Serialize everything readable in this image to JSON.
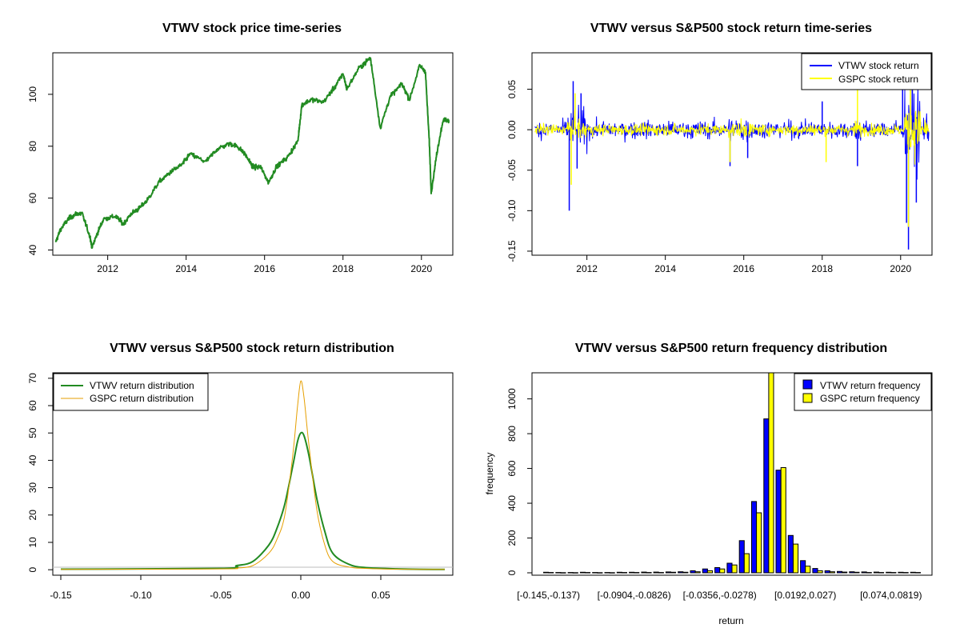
{
  "colors": {
    "price": "#228B22",
    "vtwv_return": "#0000FF",
    "gspc_return": "#FFFF00",
    "vtwv_density": "#228B22",
    "gspc_density": "#E69F00",
    "hist_vtwv": "#0000FF",
    "hist_gspc": "#FFFF00"
  },
  "chart_data": [
    {
      "type": "line",
      "title": "VTWV stock price time-series",
      "xlabel": "",
      "ylabel": "",
      "xticks": [
        "2012",
        "2014",
        "2016",
        "2018",
        "2020"
      ],
      "yticks": [
        "40",
        "60",
        "80",
        "100"
      ],
      "xlim": [
        2010.6,
        2020.8
      ],
      "ylim": [
        38,
        116
      ],
      "grid": false,
      "series": [
        {
          "x": [
            2010.67,
            2010.8,
            2011.0,
            2011.2,
            2011.35,
            2011.55,
            2011.6,
            2011.75,
            2011.9,
            2012.2,
            2012.4,
            2012.6,
            2012.8,
            2013.0,
            2013.3,
            2013.6,
            2013.9,
            2014.1,
            2014.5,
            2014.8,
            2015.1,
            2015.3,
            2015.5,
            2015.7,
            2015.9,
            2016.1,
            2016.3,
            2016.6,
            2016.85,
            2016.95,
            2017.2,
            2017.5,
            2017.8,
            2018.0,
            2018.1,
            2018.4,
            2018.7,
            2018.95,
            2019.2,
            2019.5,
            2019.7,
            2019.95,
            2020.1,
            2020.2,
            2020.25,
            2020.4,
            2020.55,
            2020.7
          ],
          "y": [
            43,
            48,
            52,
            54,
            54,
            45,
            41,
            47,
            52,
            53,
            50,
            54,
            56,
            59,
            66,
            70,
            73,
            77,
            74,
            79,
            81,
            80,
            77,
            72,
            72,
            66,
            72,
            76,
            82,
            96,
            98,
            97,
            103,
            108,
            102,
            110,
            114,
            87,
            99,
            104,
            98,
            111,
            109,
            82,
            62,
            78,
            90,
            90
          ]
        }
      ]
    },
    {
      "type": "line",
      "title": "VTWV versus S&P500 stock return time-series",
      "xlabel": "",
      "ylabel": "",
      "xticks": [
        "2012",
        "2014",
        "2016",
        "2018",
        "2020"
      ],
      "yticks": [
        "-0.15",
        "-0.10",
        "-0.05",
        "0.00",
        "0.05"
      ],
      "xlim": [
        2010.6,
        2020.8
      ],
      "ylim": [
        -0.155,
        0.095
      ],
      "grid": false,
      "legend": "top-right",
      "series": [
        {
          "name": "VTWV stock return",
          "x": [
            2011.55,
            2011.65,
            2011.75,
            2011.85,
            2015.65,
            2016.1,
            2018.0,
            2018.9,
            2020.05,
            2020.15,
            2020.2,
            2020.3,
            2020.4
          ],
          "y": [
            -0.1,
            0.06,
            -0.048,
            0.045,
            -0.045,
            -0.035,
            0.035,
            -0.045,
            0.055,
            -0.115,
            -0.148,
            0.085,
            -0.09
          ]
        },
        {
          "name": "GSPC stock return",
          "x": [
            2011.6,
            2011.7,
            2015.65,
            2018.1,
            2018.9,
            2020.2,
            2020.25
          ],
          "y": [
            -0.068,
            0.045,
            -0.04,
            -0.04,
            0.05,
            -0.12,
            0.09
          ]
        }
      ]
    },
    {
      "type": "line",
      "title": "VTWV versus S&P500 stock return distribution",
      "xlabel": "",
      "ylabel": "",
      "xticks": [
        "-0.15",
        "-0.10",
        "-0.05",
        "0.00",
        "0.05"
      ],
      "yticks": [
        "0",
        "10",
        "20",
        "30",
        "40",
        "50",
        "60",
        "70"
      ],
      "xlim": [
        -0.155,
        0.095
      ],
      "ylim": [
        -2,
        72
      ],
      "grid": false,
      "legend": "top-left",
      "series": [
        {
          "name": "VTWV return distribution",
          "x": [
            -0.15,
            -0.05,
            -0.04,
            -0.03,
            -0.02,
            -0.015,
            -0.01,
            -0.005,
            -0.002,
            0.0,
            0.002,
            0.005,
            0.01,
            0.015,
            0.02,
            0.03,
            0.04,
            0.06,
            0.09
          ],
          "y": [
            0.2,
            0.5,
            1.5,
            3,
            9,
            15,
            24,
            38,
            47,
            50,
            49,
            42,
            26,
            14,
            6,
            2,
            0.8,
            0.3,
            0.1
          ]
        },
        {
          "name": "GSPC return distribution",
          "x": [
            -0.15,
            -0.05,
            -0.04,
            -0.03,
            -0.02,
            -0.015,
            -0.01,
            -0.005,
            -0.002,
            0.0,
            0.002,
            0.005,
            0.01,
            0.015,
            0.02,
            0.03,
            0.04,
            0.06,
            0.09
          ],
          "y": [
            0.1,
            0.3,
            0.6,
            1.5,
            6,
            11,
            20,
            42,
            60,
            69,
            63,
            46,
            22,
            9,
            3,
            1,
            0.5,
            0.2,
            0.1
          ]
        }
      ]
    },
    {
      "type": "bar",
      "title": "VTWV versus S&P500 return frequency distribution",
      "xlabel": "return",
      "ylabel": "frequency",
      "xticks": [
        "[-0.145,-0.137)",
        "[-0.0904,-0.0826)",
        "[-0.0356,-0.0278)",
        "[0.0192,0.027)",
        "[0.074,0.0819)"
      ],
      "xtick_bins": [
        0,
        7,
        14,
        21,
        28
      ],
      "yticks": [
        "0",
        "200",
        "400",
        "600",
        "800",
        "1000"
      ],
      "ylim": [
        0,
        1150
      ],
      "grid": false,
      "legend": "top-right",
      "series": [
        {
          "name": "VTWV return frequency",
          "values": [
            3,
            2,
            2,
            3,
            2,
            2,
            3,
            3,
            4,
            4,
            5,
            6,
            12,
            22,
            30,
            55,
            185,
            410,
            885,
            590,
            215,
            70,
            25,
            12,
            8,
            6,
            5,
            4,
            3,
            3,
            3
          ]
        },
        {
          "name": "GSPC return frequency",
          "values": [
            2,
            1,
            1,
            2,
            1,
            1,
            2,
            2,
            2,
            2,
            3,
            3,
            6,
            12,
            22,
            45,
            110,
            345,
            1150,
            605,
            165,
            38,
            12,
            6,
            4,
            3,
            2,
            2,
            2,
            2,
            2
          ]
        }
      ]
    }
  ]
}
